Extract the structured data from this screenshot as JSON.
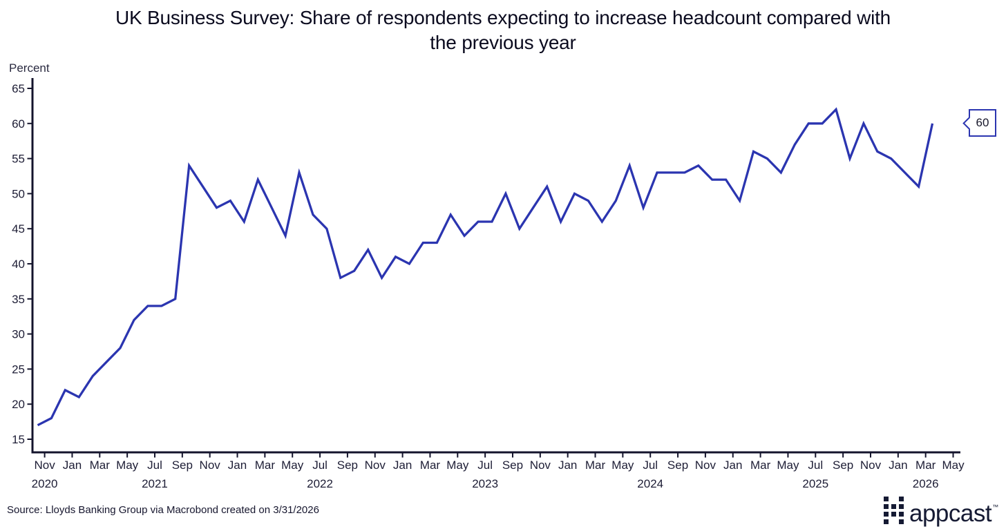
{
  "title_lines": [
    "UK Business Survey: Share of respondents expecting to increase headcount compared with",
    "the previous year"
  ],
  "y_axis_label": "Percent",
  "source_note": "Source: Lloyds Banking Group via Macrobond created on 3/31/2026",
  "callout": {
    "value": "60"
  },
  "branding": {
    "logo_text": "appcast",
    "trademark": "™"
  },
  "chart_data": {
    "type": "line",
    "title": "UK Business Survey: Share of respondents expecting to increase headcount compared with the previous year",
    "xlabel": "",
    "ylabel": "Percent",
    "ylim": [
      15,
      65
    ],
    "grid": "off",
    "legend_position": "none",
    "line_color": "#2b35b0",
    "axis_color": "#14142c",
    "last_point_label": "60",
    "y_ticks": [
      65,
      60,
      55,
      50,
      45,
      40,
      35,
      30,
      25,
      20,
      15
    ],
    "x": [
      "Oct 2020",
      "Nov 2020",
      "Dec 2020",
      "Jan 2021",
      "Feb 2021",
      "Mar 2021",
      "Apr 2021",
      "May 2021",
      "Jun 2021",
      "Jul 2021",
      "Aug 2021",
      "Sep 2021",
      "Oct 2021",
      "Nov 2021",
      "Dec 2021",
      "Jan 2022",
      "Feb 2022",
      "Mar 2022",
      "Apr 2022",
      "May 2022",
      "Jun 2022",
      "Jul 2022",
      "Aug 2022",
      "Sep 2022",
      "Oct 2022",
      "Nov 2022",
      "Dec 2022",
      "Jan 2023",
      "Feb 2023",
      "Mar 2023",
      "Apr 2023",
      "May 2023",
      "Jun 2023",
      "Jul 2023",
      "Aug 2023",
      "Sep 2023",
      "Oct 2023",
      "Nov 2023",
      "Dec 2023",
      "Jan 2024",
      "Feb 2024",
      "Mar 2024",
      "Apr 2024",
      "May 2024",
      "Jun 2024",
      "Jul 2024",
      "Aug 2024",
      "Sep 2024",
      "Oct 2024",
      "Nov 2024",
      "Dec 2024",
      "Jan 2025",
      "Feb 2025",
      "Mar 2025",
      "Apr 2025",
      "May 2025",
      "Jun 2025",
      "Jul 2025",
      "Aug 2025",
      "Sep 2025",
      "Oct 2025",
      "Nov 2025",
      "Dec 2025",
      "Jan 2026",
      "Feb 2026",
      "Mar 2026"
    ],
    "values": [
      17,
      18,
      22,
      21,
      24,
      26,
      28,
      32,
      34,
      34,
      35,
      54,
      51,
      48,
      49,
      46,
      52,
      48,
      44,
      53,
      47,
      45,
      38,
      39,
      42,
      38,
      41,
      40,
      43,
      43,
      47,
      44,
      46,
      46,
      50,
      45,
      48,
      51,
      46,
      50,
      49,
      46,
      49,
      54,
      48,
      53,
      53,
      53,
      54,
      52,
      52,
      49,
      56,
      55,
      53,
      57,
      60,
      60,
      62,
      55,
      60,
      56,
      55,
      53,
      51,
      60
    ],
    "x_tick_labels": [
      {
        "m": "Nov",
        "y": "2020"
      },
      {
        "m": "Jan"
      },
      {
        "m": "Mar"
      },
      {
        "m": "May"
      },
      {
        "m": "Jul",
        "y": "2021"
      },
      {
        "m": "Sep"
      },
      {
        "m": "Nov"
      },
      {
        "m": "Jan"
      },
      {
        "m": "Mar"
      },
      {
        "m": "May"
      },
      {
        "m": "Jul",
        "y": "2022"
      },
      {
        "m": "Sep"
      },
      {
        "m": "Nov"
      },
      {
        "m": "Jan"
      },
      {
        "m": "Mar"
      },
      {
        "m": "May"
      },
      {
        "m": "Jul",
        "y": "2023"
      },
      {
        "m": "Sep"
      },
      {
        "m": "Nov"
      },
      {
        "m": "Jan"
      },
      {
        "m": "Mar"
      },
      {
        "m": "May"
      },
      {
        "m": "Jul",
        "y": "2024"
      },
      {
        "m": "Sep"
      },
      {
        "m": "Nov"
      },
      {
        "m": "Jan"
      },
      {
        "m": "Mar"
      },
      {
        "m": "May"
      },
      {
        "m": "Jul",
        "y": "2025"
      },
      {
        "m": "Sep"
      },
      {
        "m": "Nov"
      },
      {
        "m": "Jan"
      },
      {
        "m": "Mar",
        "y": "2026"
      },
      {
        "m": "May"
      }
    ]
  }
}
